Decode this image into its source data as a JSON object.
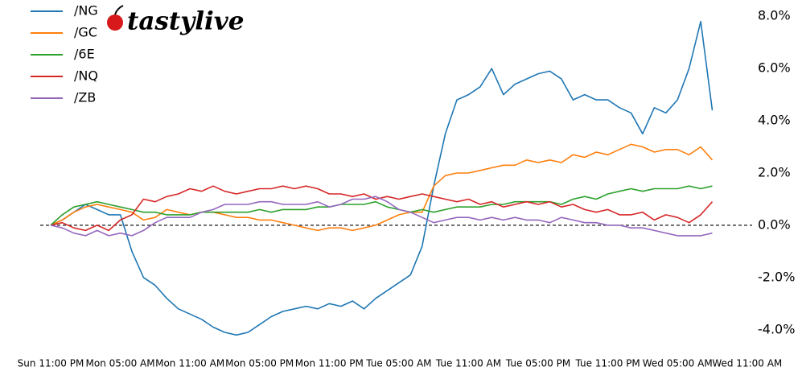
{
  "logo": "tastylive",
  "chart_data": {
    "type": "line",
    "categories": [
      "Sun 11:00 PM",
      null,
      null,
      null,
      null,
      null,
      "Mon 05:00 AM",
      null,
      null,
      null,
      null,
      null,
      "Mon 11:00 AM",
      null,
      null,
      null,
      null,
      null,
      "Mon 05:00 PM",
      null,
      null,
      null,
      null,
      null,
      "Mon 11:00 PM",
      null,
      null,
      null,
      null,
      null,
      "Tue 05:00 AM",
      null,
      null,
      null,
      null,
      null,
      "Tue 11:00 AM",
      null,
      null,
      null,
      null,
      null,
      "Tue 05:00 PM",
      null,
      null,
      null,
      null,
      null,
      "Tue 11:00 PM",
      null,
      null,
      null,
      null,
      null,
      "Wed 05:00 AM",
      null,
      null,
      null,
      null,
      null,
      "Wed 11:00 AM"
    ],
    "series": [
      {
        "name": "/NG",
        "color": "#1f77b4",
        "values": [
          0,
          0.2,
          0.5,
          0.8,
          0.6,
          0.4,
          0.4,
          -1.0,
          -2.0,
          -2.3,
          -2.8,
          -3.2,
          -3.4,
          -3.6,
          -3.9,
          -4.1,
          -4.2,
          -4.1,
          -3.8,
          -3.5,
          -3.3,
          -3.2,
          -3.1,
          -3.2,
          -3.0,
          -3.1,
          -2.9,
          -3.2,
          -2.8,
          -2.5,
          -2.2,
          -1.9,
          -0.8,
          1.5,
          3.5,
          4.8,
          5.0,
          5.3,
          6.0,
          5.0,
          5.4,
          5.6,
          5.8,
          5.9,
          5.6,
          4.8,
          5.0,
          4.8,
          4.8,
          4.5,
          4.3,
          3.5,
          4.5,
          4.3,
          4.8,
          6.0,
          7.8,
          4.4,
          null,
          null,
          null
        ]
      },
      {
        "name": "/GC",
        "color": "#ff7f0e",
        "values": [
          0,
          0.2,
          0.5,
          0.7,
          0.8,
          0.7,
          0.6,
          0.5,
          0.2,
          0.3,
          0.6,
          0.5,
          0.4,
          0.5,
          0.5,
          0.4,
          0.3,
          0.3,
          0.2,
          0.2,
          0.1,
          0.0,
          -0.1,
          -0.2,
          -0.1,
          -0.1,
          -0.2,
          -0.1,
          0.0,
          0.2,
          0.4,
          0.5,
          0.5,
          1.5,
          1.9,
          2.0,
          2.0,
          2.1,
          2.2,
          2.3,
          2.3,
          2.5,
          2.4,
          2.5,
          2.4,
          2.7,
          2.6,
          2.8,
          2.7,
          2.9,
          3.1,
          3.0,
          2.8,
          2.9,
          2.9,
          2.7,
          3.0,
          2.5,
          null,
          null,
          null
        ]
      },
      {
        "name": "/6E",
        "color": "#2ca02c",
        "values": [
          0,
          0.4,
          0.7,
          0.8,
          0.9,
          0.8,
          0.7,
          0.6,
          0.5,
          0.5,
          0.4,
          0.4,
          0.4,
          0.5,
          0.5,
          0.5,
          0.5,
          0.5,
          0.6,
          0.5,
          0.6,
          0.6,
          0.6,
          0.7,
          0.7,
          0.8,
          0.8,
          0.8,
          0.9,
          0.7,
          0.6,
          0.5,
          0.6,
          0.5,
          0.6,
          0.7,
          0.7,
          0.7,
          0.8,
          0.8,
          0.9,
          0.9,
          0.9,
          0.9,
          0.8,
          1.0,
          1.1,
          1.0,
          1.2,
          1.3,
          1.4,
          1.3,
          1.4,
          1.4,
          1.4,
          1.5,
          1.4,
          1.5,
          null,
          null,
          null
        ]
      },
      {
        "name": "/NQ",
        "color": "#d62728",
        "values": [
          0,
          0.1,
          -0.1,
          -0.2,
          0.0,
          -0.2,
          0.2,
          0.4,
          1.0,
          0.9,
          1.1,
          1.2,
          1.4,
          1.3,
          1.5,
          1.3,
          1.2,
          1.3,
          1.4,
          1.4,
          1.5,
          1.4,
          1.5,
          1.4,
          1.2,
          1.2,
          1.1,
          1.2,
          1.0,
          1.1,
          1.0,
          1.1,
          1.2,
          1.1,
          1.0,
          0.9,
          1.0,
          0.8,
          0.9,
          0.7,
          0.8,
          0.9,
          0.8,
          0.9,
          0.7,
          0.8,
          0.6,
          0.5,
          0.6,
          0.4,
          0.4,
          0.5,
          0.2,
          0.4,
          0.3,
          0.1,
          0.4,
          0.9,
          null,
          null,
          null
        ]
      },
      {
        "name": "/ZB",
        "color": "#9467bd",
        "values": [
          0,
          -0.1,
          -0.3,
          -0.4,
          -0.2,
          -0.4,
          -0.3,
          -0.4,
          -0.2,
          0.1,
          0.3,
          0.3,
          0.3,
          0.5,
          0.6,
          0.8,
          0.8,
          0.8,
          0.9,
          0.9,
          0.8,
          0.8,
          0.8,
          0.9,
          0.7,
          0.8,
          1.0,
          1.0,
          1.1,
          0.9,
          0.6,
          0.5,
          0.3,
          0.1,
          0.2,
          0.3,
          0.3,
          0.2,
          0.3,
          0.2,
          0.3,
          0.2,
          0.2,
          0.1,
          0.3,
          0.2,
          0.1,
          0.1,
          0.0,
          0.0,
          -0.1,
          -0.1,
          -0.2,
          -0.3,
          -0.4,
          -0.4,
          -0.4,
          -0.3,
          null,
          null,
          null
        ]
      }
    ],
    "ylim": [
      -4.5,
      8.5
    ],
    "yticks": [
      {
        "value": -4,
        "label": "-4.0%"
      },
      {
        "value": -2,
        "label": "-2.0%"
      },
      {
        "value": 0,
        "label": "0.0%"
      },
      {
        "value": 2,
        "label": "2.0%"
      },
      {
        "value": 4,
        "label": "4.0%"
      },
      {
        "value": 6,
        "label": "6.0%"
      },
      {
        "value": 8,
        "label": "8.0%"
      }
    ],
    "legend": "upper-left"
  }
}
